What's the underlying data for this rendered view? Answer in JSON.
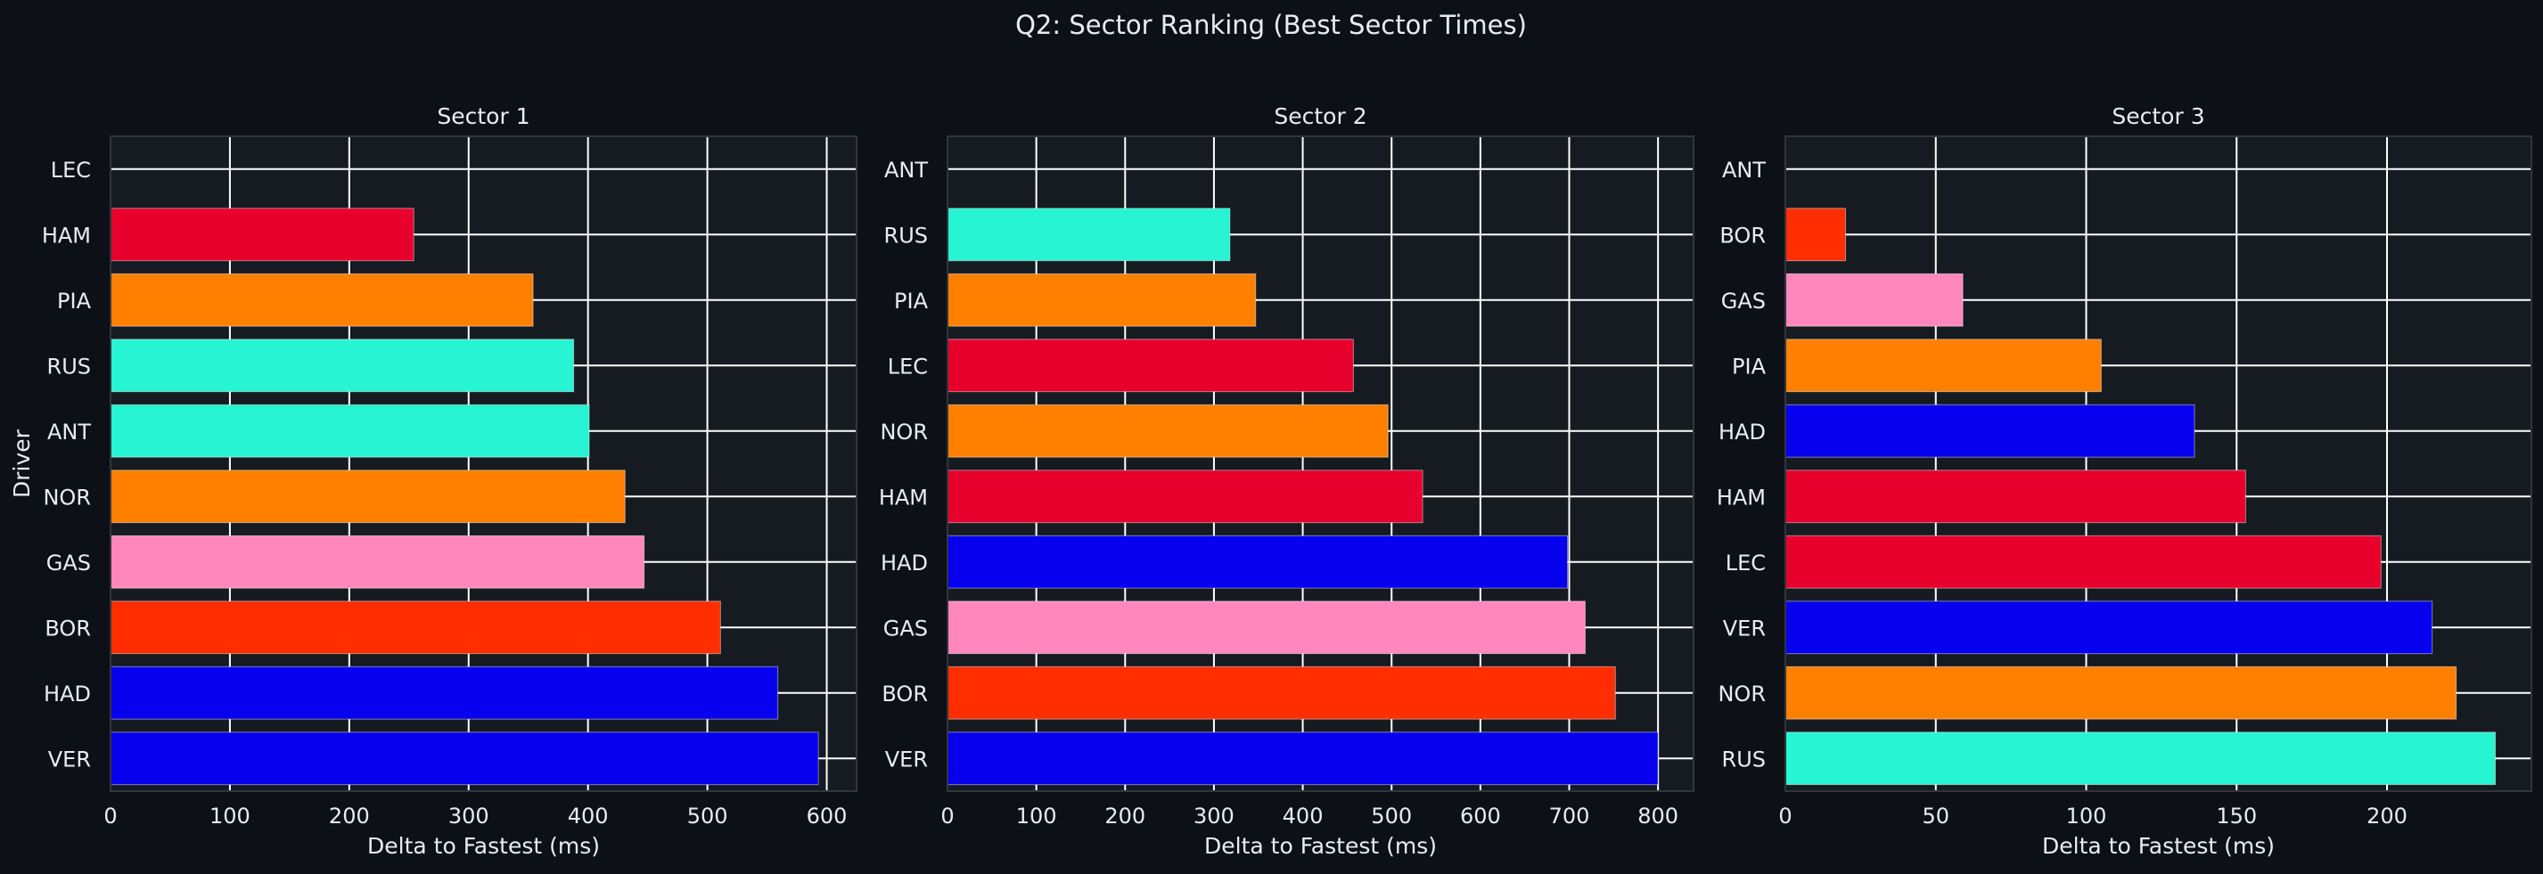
{
  "figure": {
    "title": "Q2: Sector Ranking (Best Sector Times)",
    "background": "#0d1117",
    "axes_background": "#161b22",
    "grid_color": "#ffffff",
    "spine_color": "#30363d",
    "text_color": "#e6edf3"
  },
  "team_colors": {
    "ferrari": "#e8002d",
    "mclaren": "#ff8000",
    "mercedes": "#27f4d2",
    "red_bull": "#0600ef",
    "alpine": "#ff87bc",
    "sauber": "#ff2d00"
  },
  "chart_data": [
    {
      "type": "bar",
      "orientation": "horizontal",
      "title": "Sector 1",
      "xlabel": "Delta to Fastest (ms)",
      "ylabel": "Driver",
      "xlim": [
        0,
        625
      ],
      "xticks": [
        0,
        100,
        200,
        300,
        400,
        500,
        600
      ],
      "grid": true,
      "categories": [
        "LEC",
        "HAM",
        "PIA",
        "RUS",
        "ANT",
        "NOR",
        "GAS",
        "BOR",
        "HAD",
        "VER"
      ],
      "values": [
        0,
        254,
        354,
        388,
        401,
        431,
        447,
        511,
        559,
        593
      ],
      "colors": [
        "#e8002d",
        "#e8002d",
        "#ff8000",
        "#27f4d2",
        "#27f4d2",
        "#ff8000",
        "#ff87bc",
        "#ff2d00",
        "#0600ef",
        "#0600ef"
      ]
    },
    {
      "type": "bar",
      "orientation": "horizontal",
      "title": "Sector 2",
      "xlabel": "Delta to Fastest (ms)",
      "ylabel": "",
      "xlim": [
        0,
        840
      ],
      "xticks": [
        0,
        100,
        200,
        300,
        400,
        500,
        600,
        700,
        800
      ],
      "grid": true,
      "categories": [
        "ANT",
        "RUS",
        "PIA",
        "LEC",
        "NOR",
        "HAM",
        "HAD",
        "GAS",
        "BOR",
        "VER"
      ],
      "values": [
        0,
        318,
        347,
        457,
        496,
        535,
        698,
        718,
        752,
        800
      ],
      "colors": [
        "#27f4d2",
        "#27f4d2",
        "#ff8000",
        "#e8002d",
        "#ff8000",
        "#e8002d",
        "#0600ef",
        "#ff87bc",
        "#ff2d00",
        "#0600ef"
      ]
    },
    {
      "type": "bar",
      "orientation": "horizontal",
      "title": "Sector 3",
      "xlabel": "Delta to Fastest (ms)",
      "ylabel": "",
      "xlim": [
        0,
        248
      ],
      "xticks": [
        0,
        50,
        100,
        150,
        200
      ],
      "grid": true,
      "categories": [
        "ANT",
        "BOR",
        "GAS",
        "PIA",
        "HAD",
        "HAM",
        "LEC",
        "VER",
        "NOR",
        "RUS"
      ],
      "values": [
        0,
        20,
        59,
        105,
        136,
        153,
        198,
        215,
        223,
        236
      ],
      "colors": [
        "#27f4d2",
        "#ff2d00",
        "#ff87bc",
        "#ff8000",
        "#0600ef",
        "#e8002d",
        "#e8002d",
        "#0600ef",
        "#ff8000",
        "#27f4d2"
      ]
    }
  ]
}
